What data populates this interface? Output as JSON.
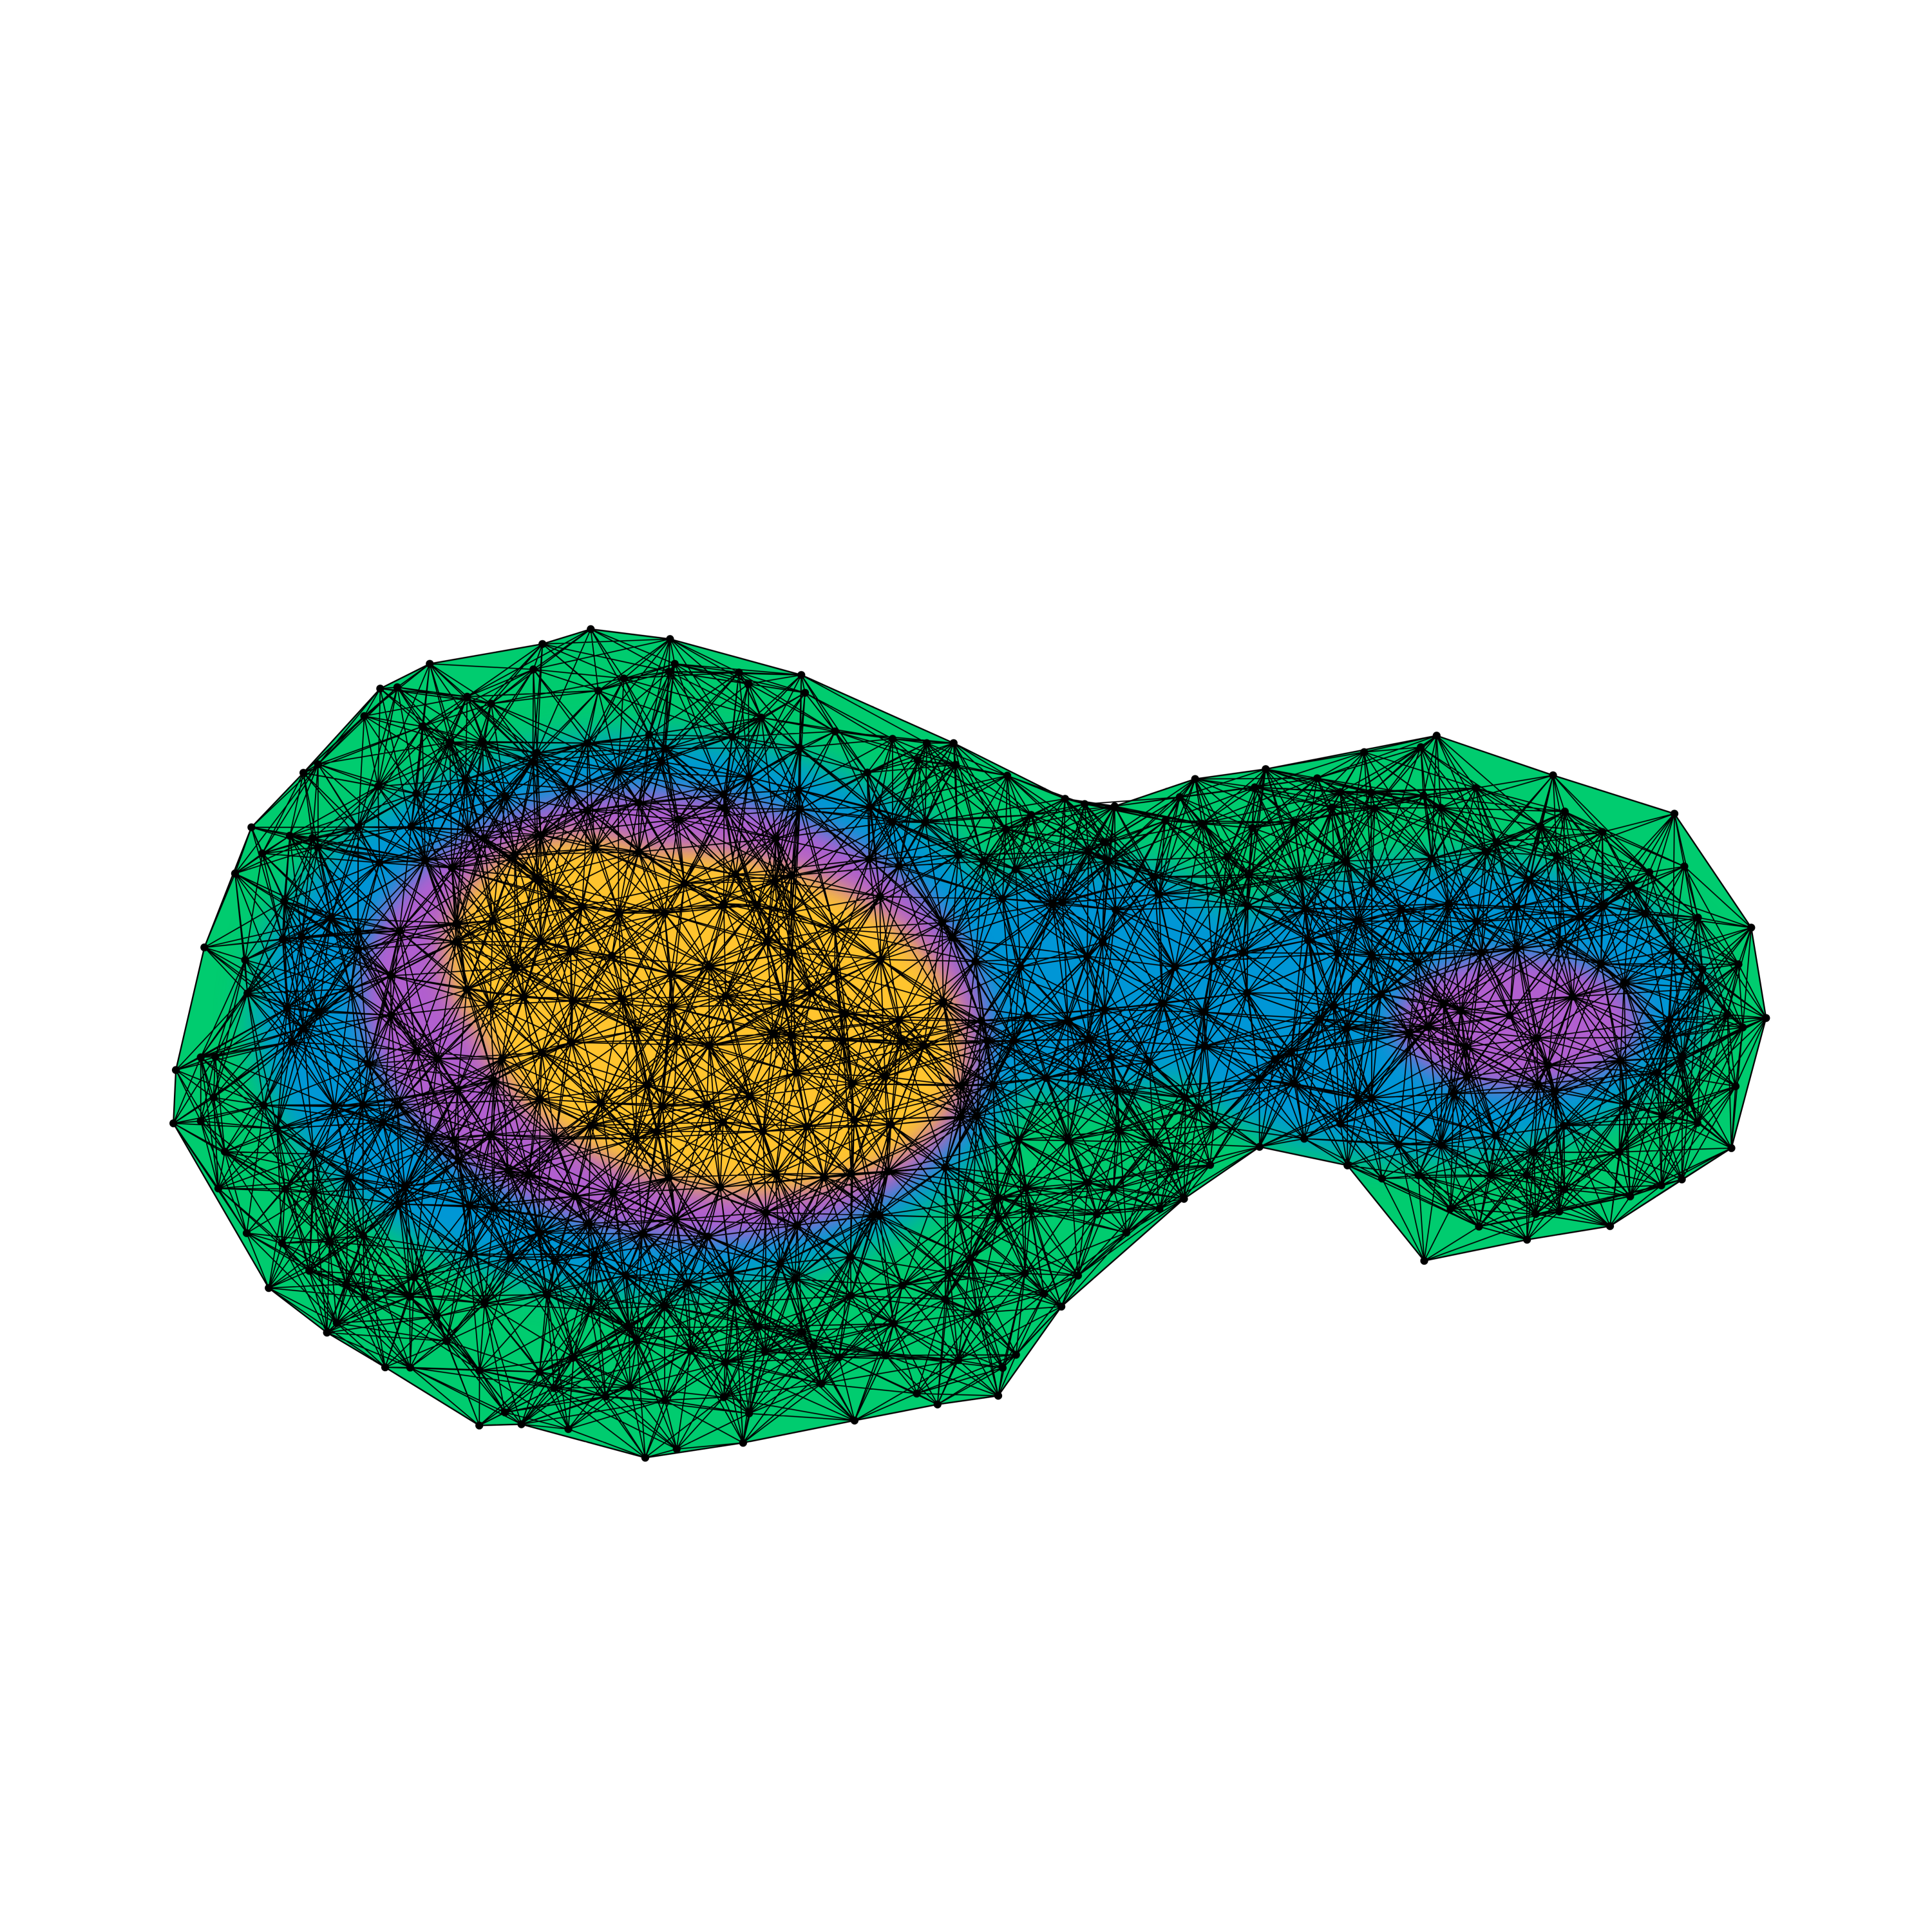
{
  "colors": {
    "background": "#ffffff",
    "outer_band": "#00cc6f",
    "middle_band": "#0596d6",
    "inner_band": "#b15fcf",
    "core": "#ffc42e",
    "mesh_edges": "#000000",
    "nodes": "#000000"
  },
  "diagram": {
    "type": "graph-mesh",
    "description_visible_text": "",
    "layers": [
      "outer_band",
      "middle_band",
      "inner_band",
      "core"
    ],
    "lobes": [
      "left-lobe",
      "right-lobe"
    ]
  }
}
